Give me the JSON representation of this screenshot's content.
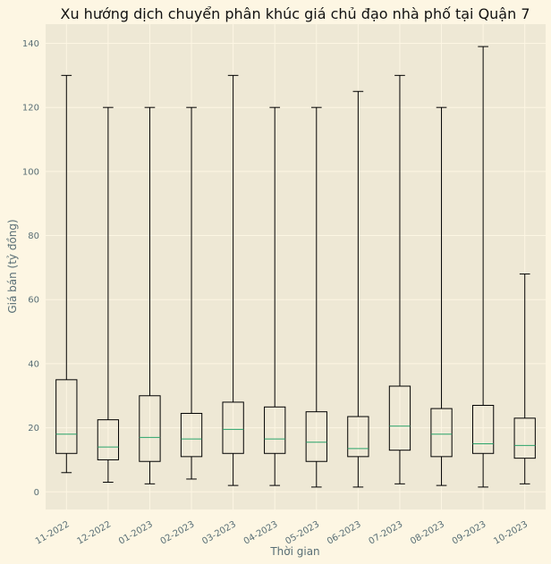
{
  "chart_data": {
    "type": "box",
    "title": "Xu hướng dịch chuyển phân khúc giá chủ đạo nhà phố tại Quận 7",
    "xlabel": "Thời gian",
    "ylabel": "Giá bán (tỷ đồng)",
    "ylim": [
      -5.5,
      146
    ],
    "yticks": [
      0,
      20,
      40,
      60,
      80,
      100,
      120,
      140
    ],
    "grid": true,
    "categories": [
      "11-2022",
      "12-2022",
      "01-2023",
      "02-2023",
      "03-2023",
      "04-2023",
      "05-2023",
      "06-2023",
      "07-2023",
      "08-2023",
      "09-2023",
      "10-2023"
    ],
    "boxes": [
      {
        "whisker_low": 6,
        "q1": 12,
        "median": 18,
        "q3": 35,
        "whisker_high": 130
      },
      {
        "whisker_low": 3,
        "q1": 10,
        "median": 14,
        "q3": 22.5,
        "whisker_high": 120
      },
      {
        "whisker_low": 2.5,
        "q1": 9.5,
        "median": 17,
        "q3": 30,
        "whisker_high": 120
      },
      {
        "whisker_low": 4,
        "q1": 11,
        "median": 16.5,
        "q3": 24.5,
        "whisker_high": 120
      },
      {
        "whisker_low": 2,
        "q1": 12,
        "median": 19.5,
        "q3": 28,
        "whisker_high": 130
      },
      {
        "whisker_low": 2,
        "q1": 12,
        "median": 16.5,
        "q3": 26.5,
        "whisker_high": 120
      },
      {
        "whisker_low": 1.5,
        "q1": 9.5,
        "median": 15.5,
        "q3": 25,
        "whisker_high": 120
      },
      {
        "whisker_low": 1.5,
        "q1": 11,
        "median": 13.5,
        "q3": 23.5,
        "whisker_high": 125
      },
      {
        "whisker_low": 2.5,
        "q1": 13,
        "median": 20.5,
        "q3": 33,
        "whisker_high": 130
      },
      {
        "whisker_low": 2,
        "q1": 11,
        "median": 18,
        "q3": 26,
        "whisker_high": 120
      },
      {
        "whisker_low": 1.5,
        "q1": 12,
        "median": 15,
        "q3": 27,
        "whisker_high": 139
      },
      {
        "whisker_low": 2.5,
        "q1": 10.5,
        "median": 14.5,
        "q3": 23,
        "whisker_high": 68
      }
    ],
    "colors": {
      "page_background": "#fdf6e3",
      "plot_background": "#eee8d5",
      "grid": "#fdf6e3",
      "box": "#000000",
      "median": "#2aa46a",
      "axis_text": "#586e75"
    }
  }
}
